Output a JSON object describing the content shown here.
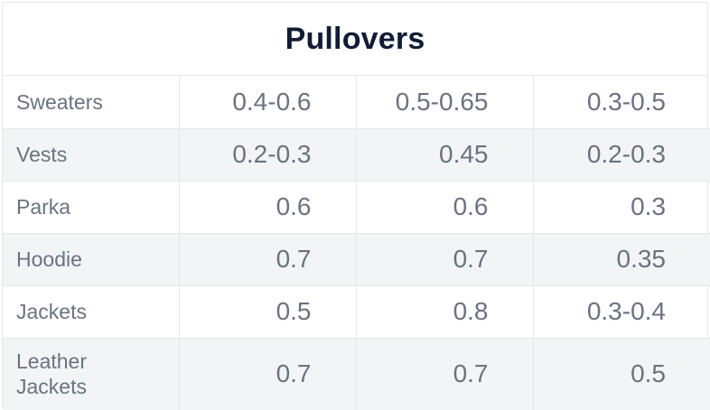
{
  "title": "Pullovers",
  "chart_data": {
    "type": "table",
    "title": "Pullovers",
    "rows": [
      {
        "label": "Sweaters",
        "values": [
          "0.4-0.6",
          "0.5-0.65",
          "0.3-0.5"
        ]
      },
      {
        "label": "Vests",
        "values": [
          "0.2-0.3",
          "0.45",
          "0.2-0.3"
        ]
      },
      {
        "label": "Parka",
        "values": [
          "0.6",
          "0.6",
          "0.3"
        ]
      },
      {
        "label": "Hoodie",
        "values": [
          "0.7",
          "0.7",
          "0.35"
        ]
      },
      {
        "label": "Jackets",
        "values": [
          "0.5",
          "0.8",
          "0.3-0.4"
        ]
      },
      {
        "label": "Leather Jackets",
        "values": [
          "0.7",
          "0.7",
          "0.5"
        ]
      }
    ]
  },
  "colors": {
    "title": "#111c35",
    "text": "#6b7280",
    "border": "#e5e7eb",
    "row_alt": "#f3f4f6"
  }
}
